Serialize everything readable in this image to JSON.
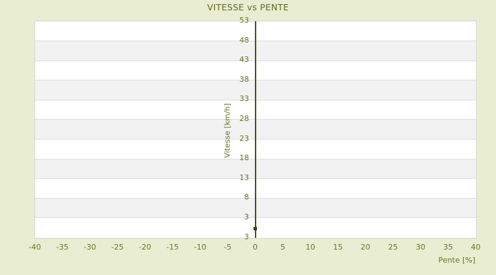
{
  "colors": {
    "background": "#e9eed3",
    "band_light": "#ffffff",
    "band_dark": "#f2f2f2",
    "grid_line": "#dedede",
    "plot_border": "#d6d6d6",
    "tick_text": "#6e7125",
    "title_text": "#63671c",
    "axis_line": "#465318",
    "point": "#39470f"
  },
  "chart_data": {
    "type": "scatter",
    "title": "VITESSE vs PENTE",
    "xlabel": "Pente [%]",
    "ylabel": "Vitesse [km/h]",
    "xlim": [
      -40,
      40
    ],
    "ylim": [
      -2,
      53
    ],
    "x_ticks": [
      -40,
      -35,
      -30,
      -25,
      -20,
      -15,
      -10,
      -5,
      0,
      5,
      10,
      15,
      20,
      25,
      30,
      35,
      40
    ],
    "y_ticks": [
      53,
      48,
      43,
      38,
      33,
      28,
      23,
      18,
      13,
      8,
      3
    ],
    "y_axis_min_label": "3",
    "grid": "horizontal-bands-alternating",
    "legend": "none",
    "zero_axis_line_x": 0,
    "series": [
      {
        "name": "vitesse",
        "points": [
          {
            "x": 0,
            "y": 0.2
          }
        ]
      }
    ]
  }
}
